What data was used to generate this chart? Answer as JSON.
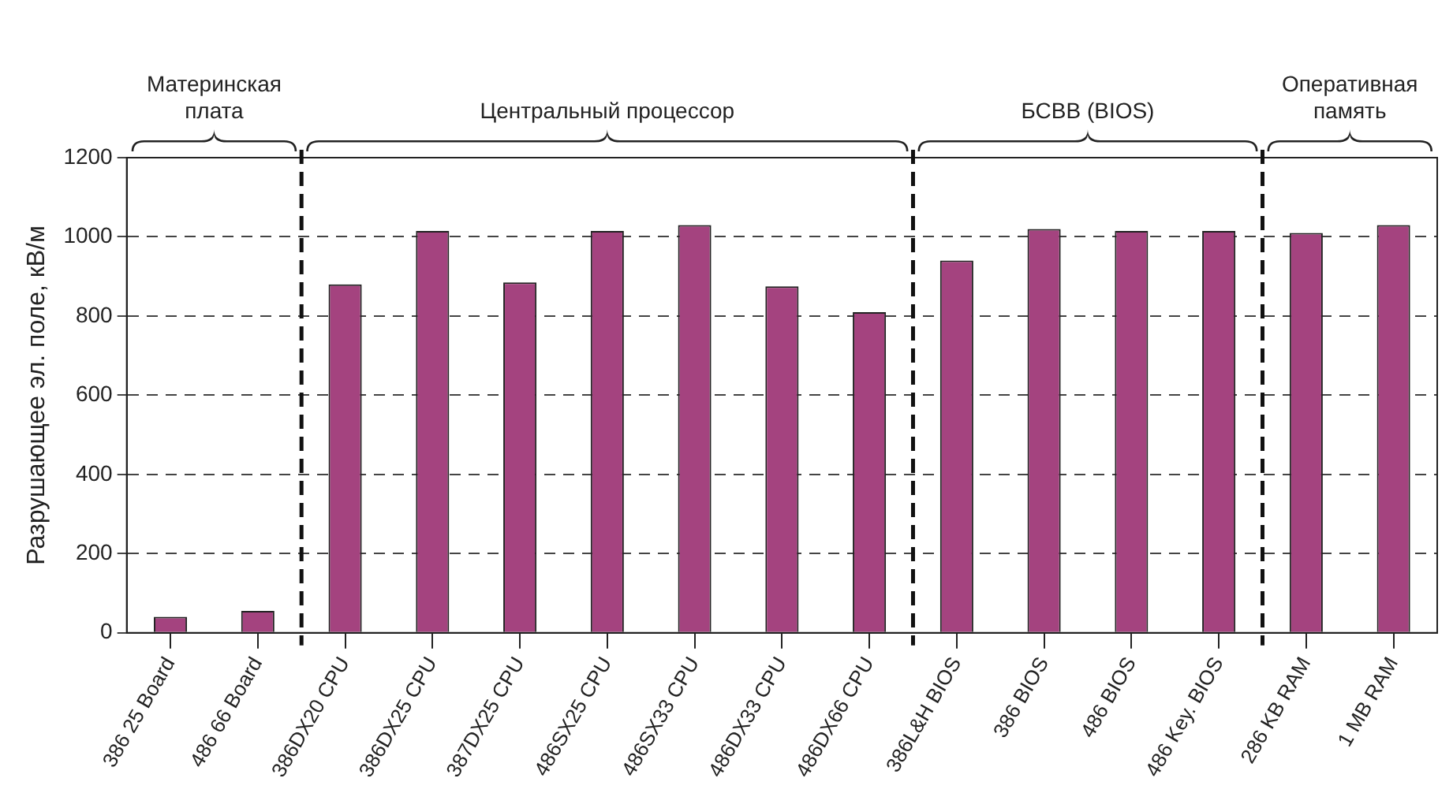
{
  "chart_data": {
    "type": "bar",
    "ylabel": "Разрушающее эл. поле, кВ/м",
    "categories": [
      "386 25 Board",
      "486 66 Board",
      "386DX20 CPU",
      "386DX25 CPU",
      "387DX25 CPU",
      "486SX25 CPU",
      "486SX33 CPU",
      "486DX33 CPU",
      "486DX66 CPU",
      "386L&H BIOS",
      "386 BIOS",
      "486 BIOS",
      "486 Key. BIOS",
      "286 KB RAM",
      "1 MB RAM"
    ],
    "values": [
      40,
      55,
      880,
      1015,
      885,
      1015,
      1030,
      875,
      810,
      940,
      1020,
      1015,
      1015,
      1010,
      1030
    ],
    "color": "#a4437f",
    "ylim": [
      0,
      1200
    ],
    "yticks": [
      0,
      200,
      400,
      600,
      800,
      1000,
      1200
    ],
    "grid": "y",
    "legend": false,
    "annotations": [
      "Материнская плата",
      "Центральный процессор",
      "БСВВ (BIOS)",
      "Оперативная память"
    ]
  }
}
